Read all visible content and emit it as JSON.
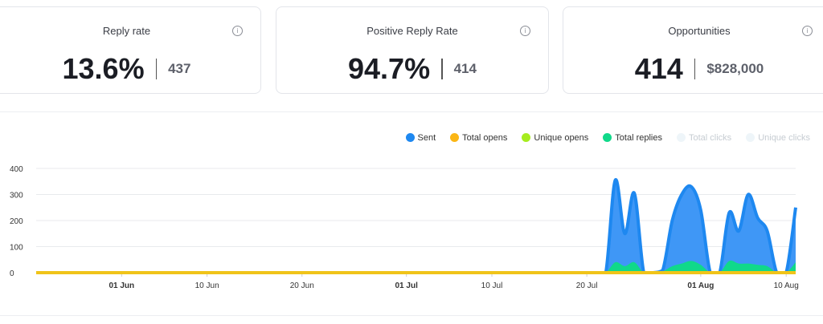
{
  "cards": [
    {
      "title": "Reply rate",
      "value": "13.6%",
      "sub": "437"
    },
    {
      "title": "Positive Reply Rate",
      "value": "94.7%",
      "sub": "414"
    },
    {
      "title": "Opportunities",
      "value": "414",
      "sub": "$828,000"
    }
  ],
  "chart_data": {
    "type": "area",
    "legend": [
      {
        "name": "Sent",
        "color": "#1e88f0",
        "active": true
      },
      {
        "name": "Total opens",
        "color": "#fbb615",
        "active": true
      },
      {
        "name": "Unique opens",
        "color": "#a6ec1f",
        "active": true
      },
      {
        "name": "Total replies",
        "color": "#10d98a",
        "active": true
      },
      {
        "name": "Total clicks",
        "color": "#eef5f9",
        "active": false
      },
      {
        "name": "Unique clicks",
        "color": "#eef5f9",
        "active": false
      }
    ],
    "ylim": [
      0,
      400
    ],
    "yticks": [
      "0",
      "100",
      "200",
      "300",
      "400"
    ],
    "xticks": [
      {
        "day": 9,
        "label": "01 Jun",
        "bold": true
      },
      {
        "day": 18,
        "label": "10 Jun"
      },
      {
        "day": 28,
        "label": "20 Jun"
      },
      {
        "day": 39,
        "label": "01 Jul",
        "bold": true
      },
      {
        "day": 48,
        "label": "10 Jul"
      },
      {
        "day": 58,
        "label": "20 Jul"
      },
      {
        "day": 70,
        "label": "01 Aug",
        "bold": true
      },
      {
        "day": 79,
        "label": "10 Aug"
      }
    ],
    "x_days": 80,
    "sent": {
      "60": 0,
      "61": 355,
      "62": 150,
      "63": 305,
      "64": 0,
      "65": 0,
      "66": 10,
      "67": 200,
      "68": 300,
      "69": 330,
      "70": 240,
      "71": 0,
      "72": 0,
      "73": 230,
      "74": 160,
      "75": 300,
      "76": 210,
      "77": 160,
      "78": 0,
      "79": 0,
      "80": 250
    },
    "replies": {
      "60": 0,
      "61": 40,
      "62": 25,
      "63": 40,
      "64": 0,
      "65": 0,
      "66": 5,
      "67": 25,
      "68": 35,
      "69": 45,
      "70": 30,
      "71": 0,
      "72": 0,
      "73": 45,
      "74": 35,
      "75": 35,
      "76": 30,
      "77": 25,
      "78": 0,
      "79": 0,
      "80": 40
    },
    "opens": 0
  }
}
